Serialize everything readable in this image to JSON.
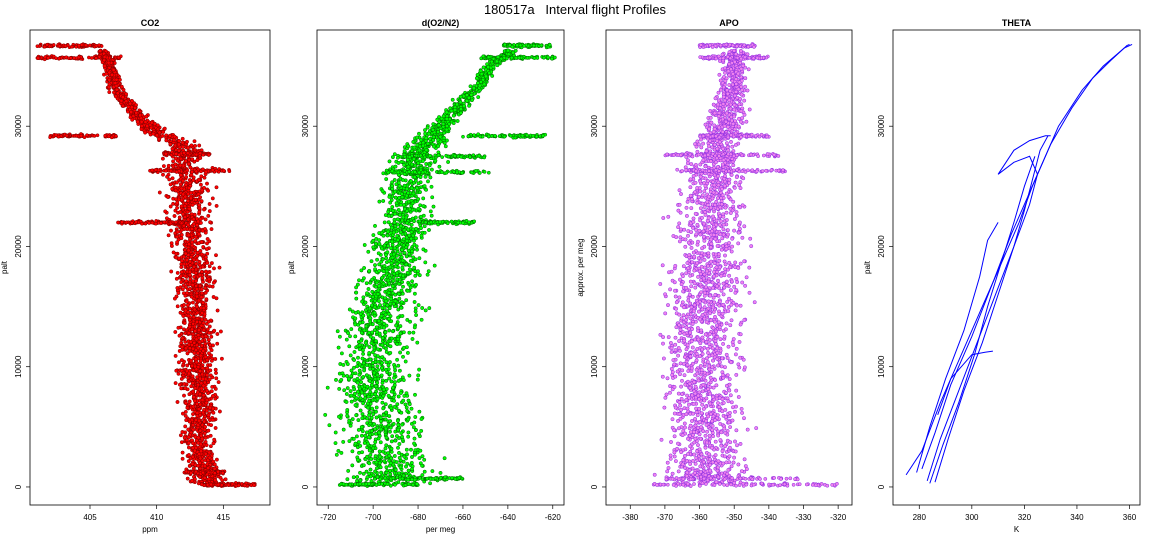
{
  "title": "180517a   Interval flight Profiles",
  "chart_data": [
    {
      "type": "scatter",
      "title": "CO2",
      "xlabel": "ppm",
      "ylabel": "palt",
      "xlim": [
        400.5,
        418.5
      ],
      "ylim": [
        -1500,
        38000
      ],
      "xticks": [
        405,
        410,
        415
      ],
      "yticks": [
        0,
        10000,
        20000,
        30000
      ],
      "grid": false,
      "style": "scatter",
      "colors": {
        "fill": "#ff0000",
        "edge": "#7a0000"
      },
      "profile": [
        [
          414,
          0
        ],
        [
          413.5,
          1500
        ],
        [
          413,
          4000
        ],
        [
          413.2,
          7000
        ],
        [
          413,
          10000
        ],
        [
          413.1,
          13000
        ],
        [
          412.8,
          16000
        ],
        [
          412.7,
          19000
        ],
        [
          412.5,
          22000
        ],
        [
          412.2,
          25000
        ],
        [
          412.2,
          27000
        ],
        [
          412,
          28500
        ],
        [
          410,
          29500
        ],
        [
          408.5,
          31000
        ],
        [
          407,
          33000
        ],
        [
          406.5,
          35000
        ],
        [
          406,
          36000
        ]
      ],
      "spread": [
        [
          0,
          1.2
        ],
        [
          15000,
          1.3
        ],
        [
          25000,
          1.6
        ],
        [
          28500,
          1.2
        ],
        [
          31000,
          0.6
        ],
        [
          37000,
          0.4
        ]
      ],
      "legs": [
        {
          "y": 36700,
          "x": [
            401,
            406
          ]
        },
        {
          "y": 35700,
          "x": [
            401,
            407.5
          ]
        },
        {
          "y": 29200,
          "x": [
            402,
            407
          ]
        },
        {
          "y": 27700,
          "x": [
            410.5,
            414
          ]
        },
        {
          "y": 26300,
          "x": [
            409.5,
            415.5
          ]
        },
        {
          "y": 22000,
          "x": [
            407,
            412
          ]
        },
        {
          "y": 1200,
          "x": [
            412,
            415
          ]
        },
        {
          "y": 200,
          "x": [
            413,
            417.5
          ]
        }
      ]
    },
    {
      "type": "scatter",
      "title": "d(O2/N2)",
      "xlabel": "per meg",
      "ylabel": "palt",
      "xlim": [
        -725,
        -615
      ],
      "ylim": [
        -1500,
        38000
      ],
      "xticks": [
        -720,
        -700,
        -680,
        -660,
        -640,
        -620
      ],
      "yticks": [
        0,
        10000,
        20000,
        30000
      ],
      "grid": false,
      "style": "scatter",
      "colors": {
        "fill": "#00ff00",
        "edge": "#006400"
      },
      "profile": [
        [
          -690,
          0
        ],
        [
          -695,
          3000
        ],
        [
          -698,
          6000
        ],
        [
          -700,
          9000
        ],
        [
          -698,
          12000
        ],
        [
          -695,
          15000
        ],
        [
          -690,
          18000
        ],
        [
          -688,
          21000
        ],
        [
          -685,
          24000
        ],
        [
          -682,
          27000
        ],
        [
          -675,
          29000
        ],
        [
          -665,
          31000
        ],
        [
          -655,
          33000
        ],
        [
          -648,
          35000
        ],
        [
          -640,
          36000
        ]
      ],
      "spread": [
        [
          0,
          18
        ],
        [
          10000,
          16
        ],
        [
          20000,
          12
        ],
        [
          27000,
          10
        ],
        [
          31000,
          5
        ],
        [
          37000,
          3
        ]
      ],
      "legs": [
        {
          "y": 36700,
          "x": [
            -642,
            -621
          ]
        },
        {
          "y": 35700,
          "x": [
            -652,
            -619
          ]
        },
        {
          "y": 29200,
          "x": [
            -660,
            -622
          ]
        },
        {
          "y": 27500,
          "x": [
            -690,
            -650
          ]
        },
        {
          "y": 26200,
          "x": [
            -695,
            -648
          ]
        },
        {
          "y": 22000,
          "x": [
            -680,
            -655
          ]
        },
        {
          "y": 700,
          "x": [
            -700,
            -660
          ]
        },
        {
          "y": 200,
          "x": [
            -715,
            -680
          ]
        }
      ]
    },
    {
      "type": "scatter",
      "title": "APO",
      "xlabel": "",
      "ylabel": "approx. per meg",
      "xlim": [
        -387,
        -316
      ],
      "ylim": [
        -1500,
        38000
      ],
      "xticks": [
        -380,
        -370,
        -360,
        -350,
        -340,
        -330,
        -320
      ],
      "yticks": [
        0,
        10000,
        20000,
        30000
      ],
      "grid": false,
      "style": "scatter",
      "colors": {
        "fill": "#ee82ee",
        "edge": "#8a2be2"
      },
      "profile": [
        [
          -358,
          0
        ],
        [
          -358,
          5000
        ],
        [
          -359,
          10000
        ],
        [
          -358,
          15000
        ],
        [
          -357,
          20000
        ],
        [
          -356,
          25000
        ],
        [
          -355,
          28000
        ],
        [
          -352,
          31000
        ],
        [
          -350,
          34000
        ],
        [
          -350,
          36500
        ]
      ],
      "spread": [
        [
          0,
          11
        ],
        [
          20000,
          10
        ],
        [
          28000,
          7
        ],
        [
          31000,
          5
        ],
        [
          37000,
          3
        ]
      ],
      "legs": [
        {
          "y": 36700,
          "x": [
            -360,
            -344
          ]
        },
        {
          "y": 35700,
          "x": [
            -360,
            -340
          ]
        },
        {
          "y": 29200,
          "x": [
            -360,
            -340
          ]
        },
        {
          "y": 27600,
          "x": [
            -370,
            -337
          ]
        },
        {
          "y": 26300,
          "x": [
            -368,
            -335
          ]
        },
        {
          "y": 700,
          "x": [
            -370,
            -330
          ]
        },
        {
          "y": 200,
          "x": [
            -375,
            -320
          ]
        }
      ]
    },
    {
      "type": "line",
      "title": "THETA",
      "xlabel": "K",
      "ylabel": "palt",
      "xlim": [
        270,
        364
      ],
      "ylim": [
        -1500,
        38000
      ],
      "xticks": [
        280,
        300,
        320,
        340,
        360
      ],
      "yticks": [
        0,
        10000,
        20000,
        30000
      ],
      "grid": false,
      "style": "line",
      "colors": {
        "line": "#0000ff"
      },
      "series": [
        {
          "x": [
            275,
            281,
            288,
            296,
            304,
            312,
            318,
            323,
            327,
            333,
            342,
            350,
            358,
            361
          ],
          "y": [
            1000,
            3000,
            7000,
            11000,
            15000,
            19000,
            22000,
            25000,
            27000,
            30000,
            33000,
            35000,
            36500,
            36800
          ]
        },
        {
          "x": [
            281,
            286,
            292,
            300,
            308,
            315,
            321,
            326,
            330,
            338,
            346,
            353,
            359,
            360
          ],
          "y": [
            1500,
            4500,
            8500,
            12500,
            17000,
            21000,
            24000,
            26500,
            28500,
            31500,
            34000,
            35500,
            36700,
            36800
          ]
        },
        {
          "x": [
            283,
            288,
            295,
            302,
            309,
            316,
            322,
            325,
            322,
            316,
            310,
            316,
            322,
            328,
            330
          ],
          "y": [
            500,
            4000,
            8000,
            12000,
            16000,
            20000,
            23500,
            26000,
            27500,
            27000,
            26000,
            28000,
            28800,
            29200,
            29200
          ]
        },
        {
          "x": [
            286,
            291,
            297,
            304,
            310,
            316,
            320,
            323,
            326,
            329
          ],
          "y": [
            400,
            4000,
            8000,
            12000,
            16000,
            20000,
            23000,
            25500,
            28000,
            29200
          ]
        },
        {
          "x": [
            284,
            289,
            295,
            301,
            306,
            311,
            316,
            320,
            324
          ],
          "y": [
            300,
            3500,
            7000,
            11000,
            15000,
            18500,
            22000,
            25000,
            27500
          ]
        },
        {
          "x": [
            279,
            284,
            290,
            297,
            303,
            306,
            310
          ],
          "y": [
            1200,
            5000,
            9000,
            13000,
            17500,
            20500,
            22000
          ]
        },
        {
          "x": [
            287,
            292,
            298,
            300,
            305,
            308
          ],
          "y": [
            6000,
            9000,
            10500,
            11000,
            11200,
            11300
          ]
        }
      ]
    }
  ]
}
